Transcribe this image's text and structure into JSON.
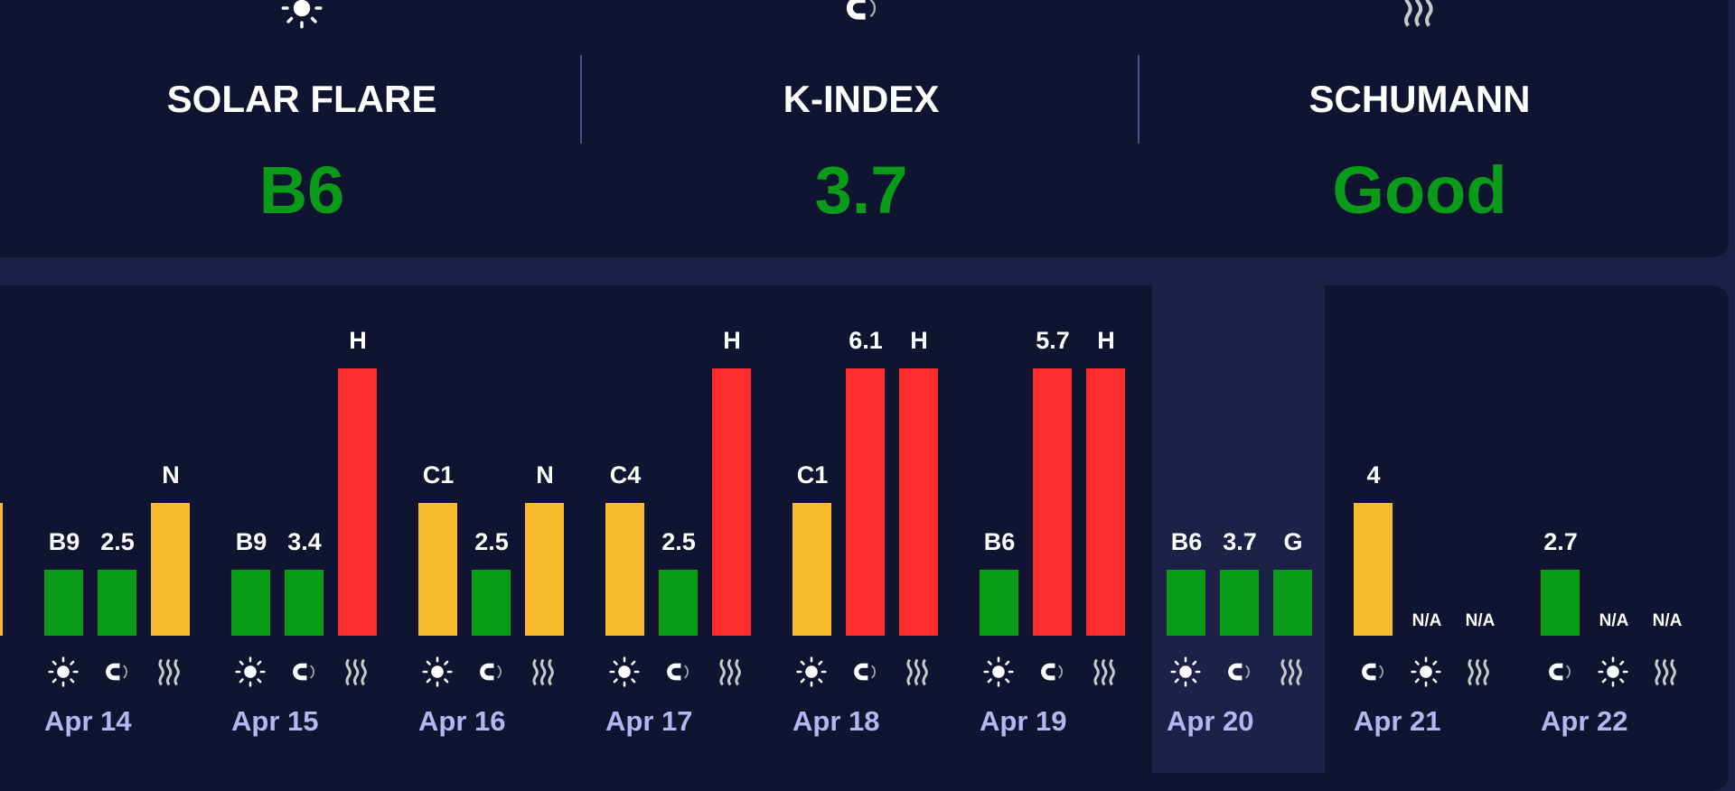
{
  "colors": {
    "low": "#0a9b18",
    "mid": "#fbbb2e",
    "high": "#ff2d2d",
    "good": "#0a9b18"
  },
  "summary": [
    {
      "title": "SOLAR FLARE",
      "value": "B6",
      "icon": "sun-icon"
    },
    {
      "title": "K-INDEX",
      "value": "3.7",
      "icon": "magnet-icon"
    },
    {
      "title": "SCHUMANN",
      "value": "Good",
      "icon": "waves-icon"
    }
  ],
  "days": [
    {
      "date": "",
      "items": [
        {
          "type": "waves",
          "label": "",
          "level": 2
        }
      ]
    },
    {
      "date": "Apr 14",
      "items": [
        {
          "type": "sun",
          "label": "B9",
          "level": 1
        },
        {
          "type": "magnet",
          "label": "2.5",
          "level": 1
        },
        {
          "type": "waves",
          "label": "N",
          "level": 2
        }
      ]
    },
    {
      "date": "Apr 15",
      "items": [
        {
          "type": "sun",
          "label": "B9",
          "level": 1
        },
        {
          "type": "magnet",
          "label": "3.4",
          "level": 1
        },
        {
          "type": "waves",
          "label": "H",
          "level": 3
        }
      ]
    },
    {
      "date": "Apr 16",
      "items": [
        {
          "type": "sun",
          "label": "C1",
          "level": 2
        },
        {
          "type": "magnet",
          "label": "2.5",
          "level": 1
        },
        {
          "type": "waves",
          "label": "N",
          "level": 2
        }
      ]
    },
    {
      "date": "Apr 17",
      "items": [
        {
          "type": "sun",
          "label": "C4",
          "level": 2
        },
        {
          "type": "magnet",
          "label": "2.5",
          "level": 1
        },
        {
          "type": "waves",
          "label": "H",
          "level": 3
        }
      ]
    },
    {
      "date": "Apr 18",
      "items": [
        {
          "type": "sun",
          "label": "C1",
          "level": 2
        },
        {
          "type": "magnet",
          "label": "6.1",
          "level": 3
        },
        {
          "type": "waves",
          "label": "H",
          "level": 3
        }
      ]
    },
    {
      "date": "Apr 19",
      "items": [
        {
          "type": "sun",
          "label": "B6",
          "level": 1
        },
        {
          "type": "magnet",
          "label": "5.7",
          "level": 3
        },
        {
          "type": "waves",
          "label": "H",
          "level": 3
        }
      ]
    },
    {
      "date": "Apr 20",
      "current": true,
      "items": [
        {
          "type": "sun",
          "label": "B6",
          "level": 1
        },
        {
          "type": "magnet",
          "label": "3.7",
          "level": 1
        },
        {
          "type": "waves",
          "label": "G",
          "level": 1
        }
      ]
    },
    {
      "date": "Apr 21",
      "items": [
        {
          "type": "magnet",
          "label": "4",
          "level": 2
        },
        {
          "type": "sun",
          "label": "N/A",
          "level": 0
        },
        {
          "type": "waves",
          "label": "N/A",
          "level": 0
        }
      ]
    },
    {
      "date": "Apr 22",
      "items": [
        {
          "type": "magnet",
          "label": "2.7",
          "level": 1
        },
        {
          "type": "sun",
          "label": "N/A",
          "level": 0
        },
        {
          "type": "waves",
          "label": "N/A",
          "level": 0
        }
      ]
    }
  ]
}
